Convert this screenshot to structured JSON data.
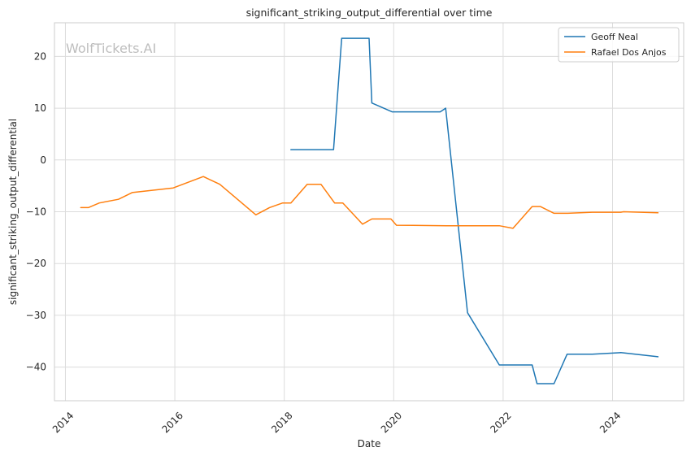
{
  "chart_data": {
    "type": "line",
    "title": "significant_striking_output_differential over time",
    "xlabel": "Date",
    "ylabel": "significant_striking_output_differential",
    "watermark": "WolfTickets.AI",
    "xlim": [
      2013.8,
      2025.3
    ],
    "ylim": [
      -46.5,
      26.5
    ],
    "x_ticks": [
      2014,
      2016,
      2018,
      2020,
      2022,
      2024
    ],
    "x_tick_labels": [
      "2014",
      "2016",
      "2018",
      "2020",
      "2022",
      "2024"
    ],
    "y_ticks": [
      20,
      10,
      0,
      -10,
      -20,
      -30,
      -40
    ],
    "y_tick_labels": [
      "20",
      "10",
      "0",
      "−10",
      "−20",
      "−30",
      "−40"
    ],
    "grid": true,
    "legend_position": "top-right",
    "series": [
      {
        "name": "Geoff Neal",
        "color": "#1f77b4",
        "x": [
          2018.12,
          2018.9,
          2019.05,
          2019.55,
          2019.6,
          2019.97,
          2020.85,
          2020.95,
          2021.35,
          2021.93,
          2022.53,
          2022.62,
          2022.93,
          2023.17,
          2023.63,
          2024.15,
          2024.83
        ],
        "y": [
          2.0,
          2.0,
          23.5,
          23.5,
          11.0,
          9.3,
          9.3,
          10.0,
          -29.5,
          -39.6,
          -39.6,
          -43.2,
          -43.2,
          -37.5,
          -37.5,
          -37.2,
          -38.0
        ]
      },
      {
        "name": "Rafael Dos Anjos",
        "color": "#ff7f0e",
        "x": [
          2014.28,
          2014.42,
          2014.62,
          2014.97,
          2015.22,
          2015.97,
          2016.52,
          2016.82,
          2017.48,
          2017.73,
          2017.97,
          2018.12,
          2018.42,
          2018.67,
          2018.92,
          2019.07,
          2019.43,
          2019.6,
          2019.95,
          2020.05,
          2020.97,
          2021.93,
          2022.18,
          2022.53,
          2022.68,
          2022.93,
          2023.18,
          2023.63,
          2024.15,
          2024.2,
          2024.83
        ],
        "y": [
          -9.2,
          -9.2,
          -8.3,
          -7.6,
          -6.3,
          -5.4,
          -3.2,
          -4.7,
          -10.6,
          -9.2,
          -8.3,
          -8.3,
          -4.7,
          -4.7,
          -8.3,
          -8.3,
          -12.4,
          -11.4,
          -11.4,
          -12.6,
          -12.7,
          -12.7,
          -13.2,
          -9.0,
          -9.0,
          -10.3,
          -10.3,
          -10.1,
          -10.1,
          -10.0,
          -10.2
        ]
      }
    ]
  }
}
